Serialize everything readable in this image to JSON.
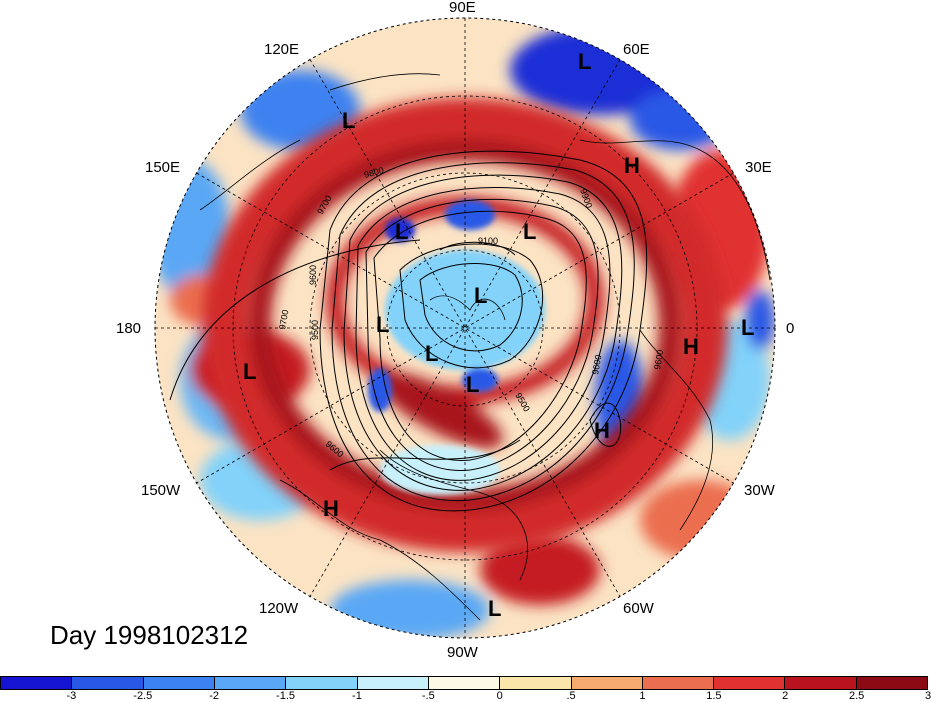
{
  "title": "Day 1998102312",
  "longitude_labels": [
    {
      "id": "lon-90e",
      "text": "90E"
    },
    {
      "id": "lon-60e",
      "text": "60E"
    },
    {
      "id": "lon-120e",
      "text": "120E"
    },
    {
      "id": "lon-150e",
      "text": "150E"
    },
    {
      "id": "lon-30e",
      "text": "30E"
    },
    {
      "id": "lon-180",
      "text": "180"
    },
    {
      "id": "lon-0",
      "text": "0"
    },
    {
      "id": "lon-150w",
      "text": "150W"
    },
    {
      "id": "lon-30w",
      "text": "30W"
    },
    {
      "id": "lon-120w",
      "text": "120W"
    },
    {
      "id": "lon-60w",
      "text": "60W"
    },
    {
      "id": "lon-90w",
      "text": "90W"
    }
  ],
  "pressure_markers": [
    {
      "type": "L"
    },
    {
      "type": "L"
    },
    {
      "type": "H"
    },
    {
      "type": "L"
    },
    {
      "type": "L"
    },
    {
      "type": "L"
    },
    {
      "type": "L"
    },
    {
      "type": "L"
    },
    {
      "type": "L"
    },
    {
      "type": "L"
    },
    {
      "type": "H"
    },
    {
      "type": "L"
    },
    {
      "type": "H"
    },
    {
      "type": "H"
    },
    {
      "type": "L"
    }
  ],
  "contour_labels": [
    "9700",
    "9800",
    "9900",
    "9500",
    "9700",
    "9600",
    "9100",
    "9600",
    "9600",
    "9500",
    "9600"
  ],
  "colorbar": {
    "colors": [
      "#1414d2",
      "#2a58e6",
      "#3c82f0",
      "#5aa8f5",
      "#82d2fa",
      "#c8f0fa",
      "#fafae6",
      "#fae6aa",
      "#f5aa6e",
      "#eb6e50",
      "#e13232",
      "#b9141e",
      "#8c0a14"
    ],
    "ticks": [
      "-3",
      "-2.5",
      "-2",
      "-1.5",
      "-1",
      "-.5",
      "0",
      ".5",
      "1",
      "1.5",
      "2",
      "2.5",
      "3"
    ]
  }
}
